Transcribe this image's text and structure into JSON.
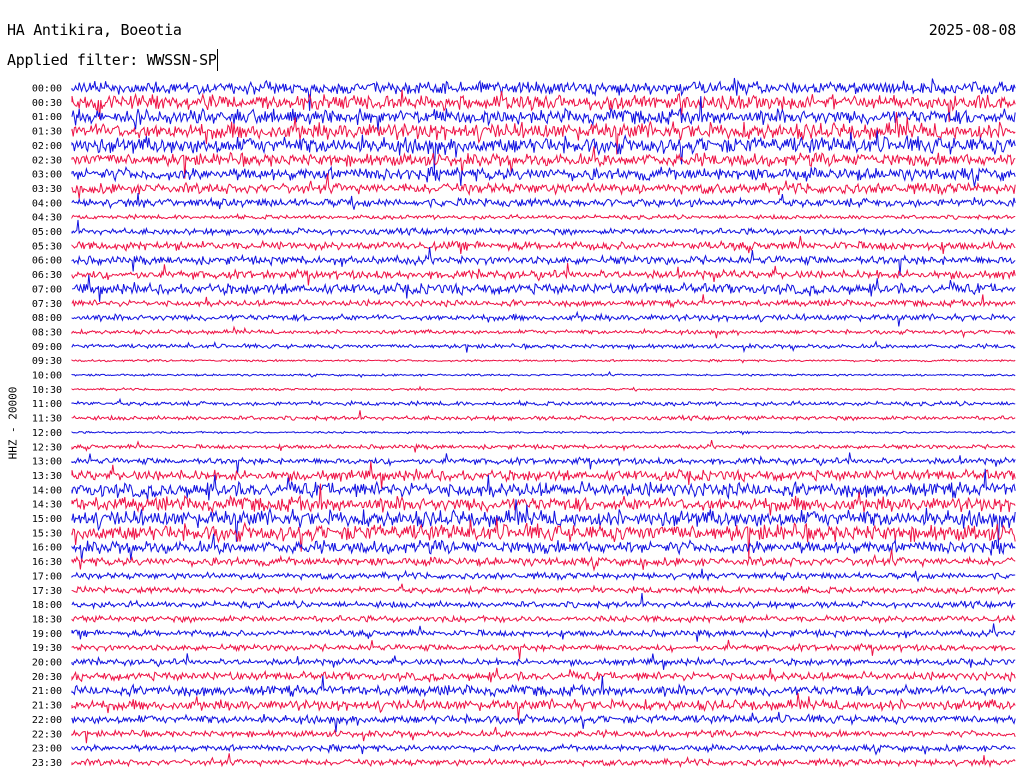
{
  "header": {
    "station": "HA Antikira, Boeotia",
    "date": "2025-08-08",
    "filter": "Applied filter: WWSSN-SP"
  },
  "chart_data": {
    "type": "line",
    "title": "HA Antikira, Boeotia",
    "ylabel": "HHZ - 20000",
    "rows": [
      "00:00",
      "00:30",
      "01:00",
      "01:30",
      "02:00",
      "02:30",
      "03:00",
      "03:30",
      "04:00",
      "04:30",
      "05:00",
      "05:30",
      "06:00",
      "06:30",
      "07:00",
      "07:30",
      "08:00",
      "08:30",
      "09:00",
      "09:30",
      "10:00",
      "10:30",
      "11:00",
      "11:30",
      "12:00",
      "12:30",
      "13:00",
      "13:30",
      "14:00",
      "14:30",
      "15:00",
      "15:30",
      "16:00",
      "16:30",
      "17:00",
      "17:30",
      "18:00",
      "18:30",
      "19:00",
      "19:30",
      "20:00",
      "20:30",
      "21:00",
      "21:30",
      "22:00",
      "22:30",
      "23:00",
      "23:30"
    ],
    "series_colors": [
      "#1010e0",
      "#ee1144"
    ],
    "activity": [
      6,
      7,
      7,
      8,
      8,
      6,
      6,
      5,
      4,
      2,
      3,
      4,
      4,
      4,
      5,
      3,
      3,
      2,
      2,
      1,
      1,
      1,
      2,
      2,
      1,
      2,
      3,
      5,
      7,
      7,
      8,
      8,
      6,
      4,
      3,
      3,
      3,
      3,
      3,
      3,
      3,
      4,
      5,
      5,
      4,
      3,
      3,
      3
    ]
  }
}
